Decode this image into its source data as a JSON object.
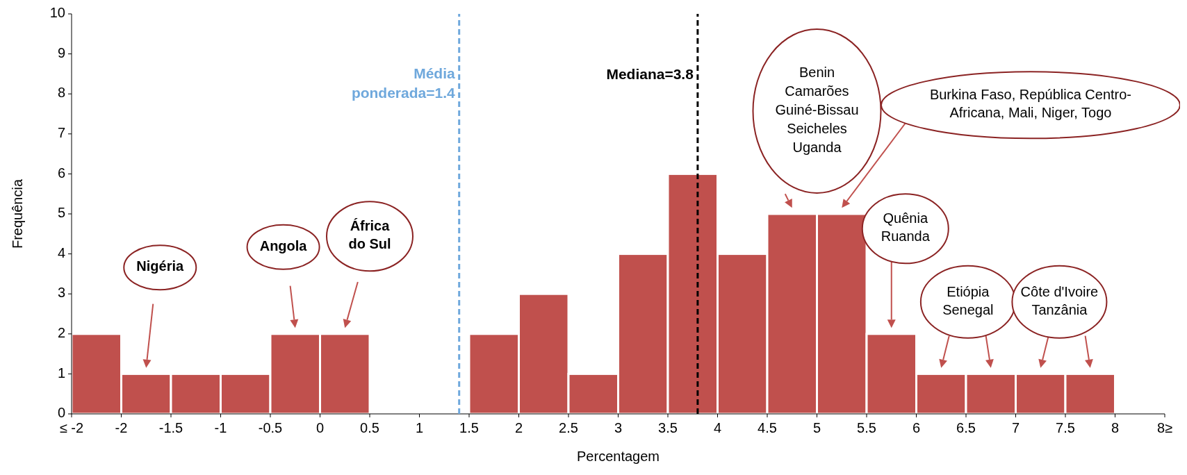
{
  "chart_data": {
    "type": "histogram",
    "xlabel": "Percentagem",
    "ylabel": "Frequência",
    "bins": [
      -2.5,
      -2,
      -1.5,
      -1,
      -0.5,
      0,
      0.5,
      1,
      1.5,
      2,
      2.5,
      3,
      3.5,
      4,
      4.5,
      5,
      5.5,
      6,
      6.5,
      7,
      7.5,
      8,
      8.5
    ],
    "values": [
      2,
      1,
      1,
      1,
      2,
      2,
      0,
      0,
      2,
      3,
      1,
      4,
      6,
      4,
      5,
      5,
      2,
      1,
      1,
      1,
      1,
      0
    ],
    "color": "#c0504d",
    "xlim": [
      -2.5,
      8.5
    ],
    "xticks": [
      {
        "value": -2.5,
        "label": "≤ -2"
      },
      -2,
      -1.5,
      -1,
      -0.5,
      0,
      0.5,
      1,
      1.5,
      2,
      2.5,
      3,
      3.5,
      4,
      4.5,
      5,
      5.5,
      6,
      6.5,
      7,
      7.5,
      8,
      {
        "value": 8.5,
        "label": "8≥"
      }
    ],
    "ylim": [
      0,
      10
    ],
    "yticks": [
      0,
      1,
      2,
      3,
      4,
      5,
      6,
      7,
      8,
      9,
      10
    ],
    "grid": false,
    "ref_lines": [
      {
        "axis": "x",
        "value": 1.4,
        "label": "Média\nponderada=1.4",
        "color": "#6fa8dc",
        "line_style": "dashed"
      },
      {
        "axis": "x",
        "value": 3.8,
        "label": "Mediana=3.8",
        "color": "#000000",
        "line_style": "dashed"
      }
    ],
    "annotations": [
      "Nigéria",
      "Angola",
      "África\ndo Sul",
      "Benin\nCamarões\nGuiné-Bissau\nSeicheles\nUganda",
      "Burkina Faso, República Centro-\nAfricana, Mali, Niger, Togo",
      "Quênia\nRuanda",
      "Etiópia\nSenegal",
      "Côte d'Ivoire\nTanzânia"
    ]
  }
}
